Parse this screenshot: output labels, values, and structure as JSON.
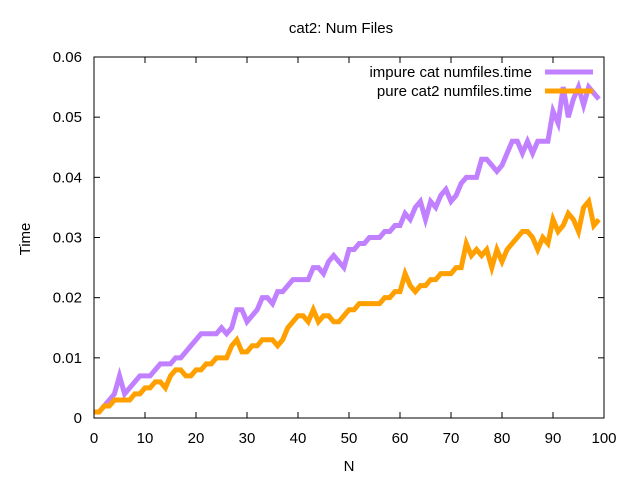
{
  "chart_data": {
    "type": "line",
    "title": "cat2: Num Files",
    "xlabel": "N",
    "ylabel": "Time",
    "xlim": [
      0,
      100
    ],
    "ylim": [
      0,
      0.06
    ],
    "xticks": [
      "0",
      "10",
      "20",
      "30",
      "40",
      "50",
      "60",
      "70",
      "80",
      "90",
      "100"
    ],
    "yticks": [
      "0",
      "0.01",
      "0.02",
      "0.03",
      "0.04",
      "0.05",
      "0.06"
    ],
    "grid": false,
    "legend": "top-right",
    "series": [
      {
        "name": "impure cat numfiles.time",
        "color": "#c080ff",
        "x": [
          0,
          1,
          2,
          3,
          4,
          5,
          6,
          7,
          8,
          9,
          10,
          11,
          12,
          13,
          14,
          15,
          16,
          17,
          18,
          19,
          20,
          21,
          22,
          23,
          24,
          25,
          26,
          27,
          28,
          29,
          30,
          31,
          32,
          33,
          34,
          35,
          36,
          37,
          38,
          39,
          40,
          41,
          42,
          43,
          44,
          45,
          46,
          47,
          48,
          49,
          50,
          51,
          52,
          53,
          54,
          55,
          56,
          57,
          58,
          59,
          60,
          61,
          62,
          63,
          64,
          65,
          66,
          67,
          68,
          69,
          70,
          71,
          72,
          73,
          74,
          75,
          76,
          77,
          78,
          79,
          80,
          81,
          82,
          83,
          84,
          85,
          86,
          87,
          88,
          89,
          90,
          91,
          92,
          93,
          94,
          95,
          96,
          97,
          98,
          99
        ],
        "y": [
          0.001,
          0.001,
          0.002,
          0.003,
          0.004,
          0.007,
          0.004,
          0.005,
          0.006,
          0.007,
          0.007,
          0.007,
          0.008,
          0.009,
          0.009,
          0.009,
          0.01,
          0.01,
          0.011,
          0.012,
          0.013,
          0.014,
          0.014,
          0.014,
          0.014,
          0.015,
          0.014,
          0.015,
          0.018,
          0.018,
          0.016,
          0.017,
          0.018,
          0.02,
          0.02,
          0.019,
          0.021,
          0.021,
          0.022,
          0.023,
          0.023,
          0.023,
          0.023,
          0.025,
          0.025,
          0.024,
          0.026,
          0.027,
          0.026,
          0.025,
          0.028,
          0.028,
          0.029,
          0.029,
          0.03,
          0.03,
          0.03,
          0.031,
          0.031,
          0.032,
          0.032,
          0.034,
          0.033,
          0.035,
          0.036,
          0.033,
          0.036,
          0.035,
          0.037,
          0.038,
          0.036,
          0.037,
          0.039,
          0.04,
          0.04,
          0.04,
          0.043,
          0.043,
          0.042,
          0.041,
          0.042,
          0.044,
          0.046,
          0.046,
          0.044,
          0.046,
          0.044,
          0.046,
          0.046,
          0.046,
          0.051,
          0.049,
          0.055,
          0.05,
          0.053,
          0.055,
          0.052,
          0.055,
          0.054,
          0.053
        ]
      },
      {
        "name": "pure cat2 numfiles.time",
        "color": "#ffa000",
        "x": [
          0,
          1,
          2,
          3,
          4,
          5,
          6,
          7,
          8,
          9,
          10,
          11,
          12,
          13,
          14,
          15,
          16,
          17,
          18,
          19,
          20,
          21,
          22,
          23,
          24,
          25,
          26,
          27,
          28,
          29,
          30,
          31,
          32,
          33,
          34,
          35,
          36,
          37,
          38,
          39,
          40,
          41,
          42,
          43,
          44,
          45,
          46,
          47,
          48,
          49,
          50,
          51,
          52,
          53,
          54,
          55,
          56,
          57,
          58,
          59,
          60,
          61,
          62,
          63,
          64,
          65,
          66,
          67,
          68,
          69,
          70,
          71,
          72,
          73,
          74,
          75,
          76,
          77,
          78,
          79,
          80,
          81,
          82,
          83,
          84,
          85,
          86,
          87,
          88,
          89,
          90,
          91,
          92,
          93,
          94,
          95,
          96,
          97,
          98,
          99
        ],
        "y": [
          0.001,
          0.001,
          0.002,
          0.002,
          0.003,
          0.003,
          0.003,
          0.003,
          0.004,
          0.004,
          0.005,
          0.005,
          0.006,
          0.006,
          0.005,
          0.007,
          0.008,
          0.008,
          0.007,
          0.007,
          0.008,
          0.008,
          0.009,
          0.009,
          0.01,
          0.01,
          0.01,
          0.012,
          0.013,
          0.011,
          0.011,
          0.012,
          0.012,
          0.013,
          0.013,
          0.013,
          0.012,
          0.013,
          0.015,
          0.016,
          0.017,
          0.017,
          0.016,
          0.018,
          0.016,
          0.017,
          0.017,
          0.016,
          0.016,
          0.017,
          0.018,
          0.018,
          0.019,
          0.019,
          0.019,
          0.019,
          0.019,
          0.02,
          0.02,
          0.021,
          0.021,
          0.024,
          0.022,
          0.021,
          0.022,
          0.022,
          0.023,
          0.023,
          0.024,
          0.024,
          0.024,
          0.025,
          0.025,
          0.029,
          0.027,
          0.028,
          0.027,
          0.028,
          0.025,
          0.028,
          0.026,
          0.028,
          0.029,
          0.03,
          0.031,
          0.031,
          0.03,
          0.028,
          0.03,
          0.029,
          0.033,
          0.031,
          0.032,
          0.034,
          0.033,
          0.031,
          0.035,
          0.036,
          0.032,
          0.033
        ]
      }
    ]
  }
}
